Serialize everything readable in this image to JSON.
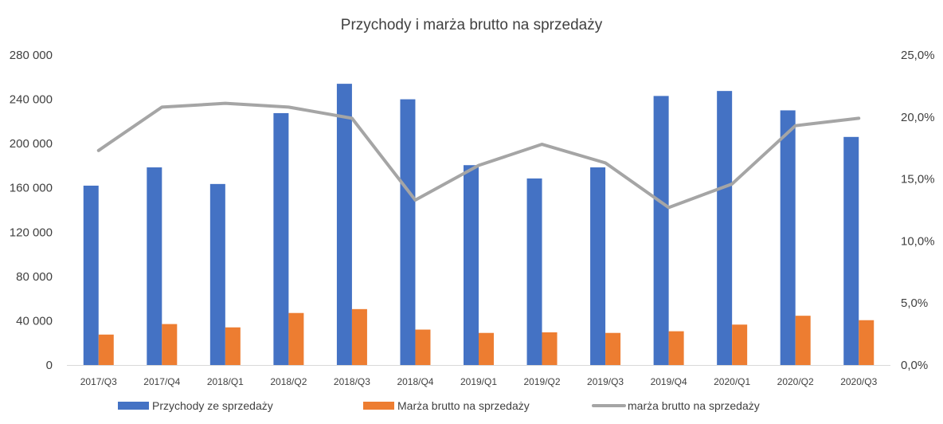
{
  "chart_data": {
    "type": "bar",
    "title": "Przychody i marża brutto na sprzedaży",
    "categories": [
      "2017/Q3",
      "2017/Q4",
      "2018/Q1",
      "2018/Q2",
      "2018/Q3",
      "2018/Q4",
      "2019/Q1",
      "2019/Q2",
      "2019/Q3",
      "2019/Q4",
      "2020/Q1",
      "2020/Q2",
      "2020/Q3"
    ],
    "series": [
      {
        "name": "Przychody ze sprzedaży",
        "type": "bar",
        "axis": "left",
        "color": "#4472C4",
        "values": [
          162000,
          178500,
          163500,
          227500,
          254000,
          240000,
          180500,
          168500,
          178500,
          243000,
          247500,
          230000,
          206000
        ]
      },
      {
        "name": "Marża brutto na sprzedaży",
        "type": "bar",
        "axis": "left",
        "color": "#ED7D31",
        "values": [
          27500,
          37000,
          34000,
          47000,
          50500,
          32000,
          29000,
          29500,
          29000,
          30500,
          36500,
          44500,
          40500
        ]
      },
      {
        "name": "marża brutto na sprzedaży",
        "type": "line",
        "axis": "right",
        "color": "#A5A5A5",
        "values": [
          0.173,
          0.208,
          0.211,
          0.208,
          0.199,
          0.133,
          0.161,
          0.178,
          0.163,
          0.127,
          0.146,
          0.193,
          0.199
        ]
      }
    ],
    "y_left": {
      "min": 0,
      "max": 280000,
      "tick_values": [
        0,
        40000,
        80000,
        120000,
        160000,
        200000,
        240000,
        280000
      ],
      "tick_labels": [
        "0",
        "40 000",
        "80 000",
        "120 000",
        "160 000",
        "200 000",
        "240 000",
        "280 000"
      ]
    },
    "y_right": {
      "min": 0,
      "max": 0.25,
      "tick_values": [
        0,
        0.05,
        0.1,
        0.15,
        0.2,
        0.25
      ],
      "tick_labels": [
        "0,0%",
        "5,0%",
        "10,0%",
        "15,0%",
        "20,0%",
        "25,0%"
      ]
    },
    "grid": false,
    "legend_position": "bottom"
  }
}
